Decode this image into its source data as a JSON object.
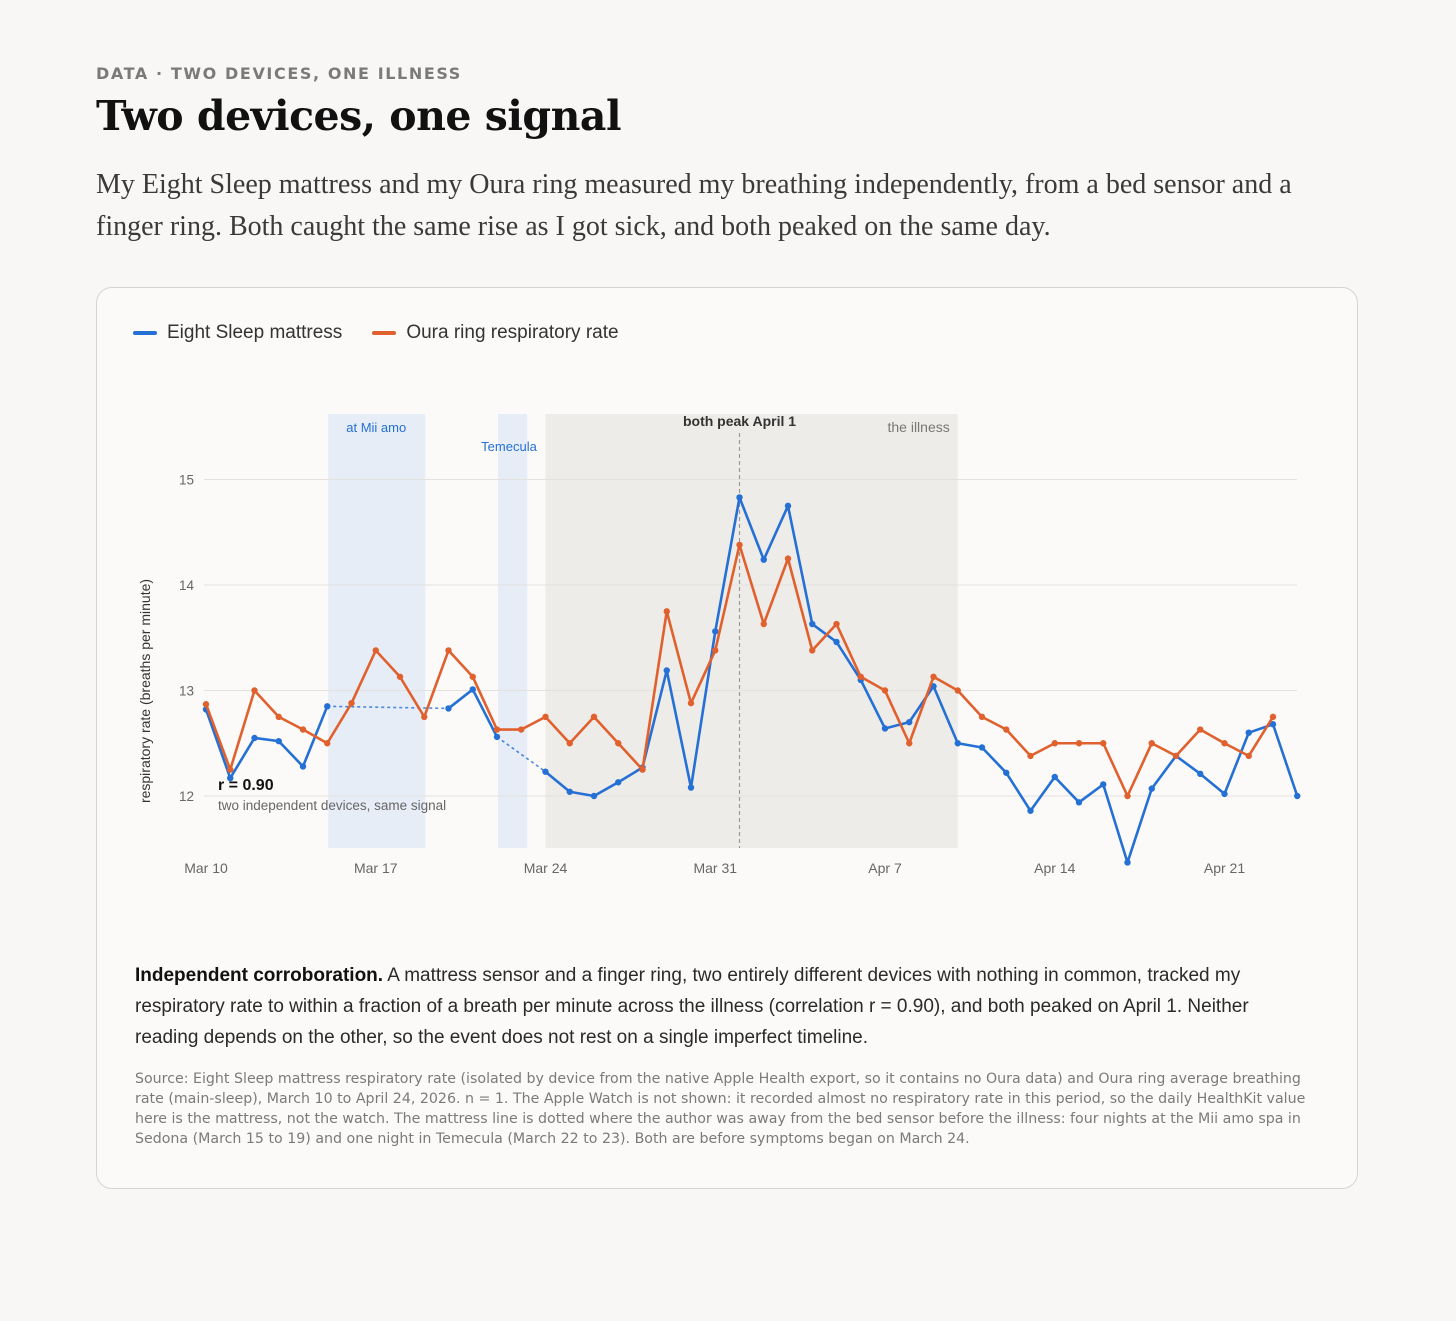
{
  "header": {
    "kicker": "DATA · TWO DEVICES, ONE ILLNESS",
    "title": "Two devices, one signal",
    "dek": "My Eight Sleep mattress and my Oura ring measured my breathing independently, from a bed sensor and a finger ring. Both caught the same rise as I got sick, and both peaked on the same day."
  },
  "colors": {
    "eight_sleep": "#2570d4",
    "oura": "#e0602e",
    "away_band": "#e6edf7",
    "illness_band": "#eeece8",
    "away_label": "#2570d4",
    "grid": "#e4e2de",
    "muted_text": "#777777"
  },
  "chart_data": {
    "type": "line",
    "x_start": "2026-03-10",
    "x": [
      "Mar 10",
      "Mar 11",
      "Mar 12",
      "Mar 13",
      "Mar 14",
      "Mar 15",
      "Mar 16",
      "Mar 17",
      "Mar 18",
      "Mar 19",
      "Mar 20",
      "Mar 21",
      "Mar 22",
      "Mar 23",
      "Mar 24",
      "Mar 25",
      "Mar 26",
      "Mar 27",
      "Mar 28",
      "Mar 29",
      "Mar 30",
      "Mar 31",
      "Apr 1",
      "Apr 2",
      "Apr 3",
      "Apr 4",
      "Apr 5",
      "Apr 6",
      "Apr 7",
      "Apr 8",
      "Apr 9",
      "Apr 10",
      "Apr 11",
      "Apr 12",
      "Apr 13",
      "Apr 14",
      "Apr 15",
      "Apr 16",
      "Apr 17",
      "Apr 18",
      "Apr 19",
      "Apr 20",
      "Apr 21",
      "Apr 22",
      "Apr 23",
      "Apr 24",
      "Apr 25"
    ],
    "series": [
      {
        "name": "Eight Sleep mattress",
        "color": "#2570d4",
        "values": [
          12.82,
          12.17,
          12.55,
          12.52,
          12.28,
          12.85,
          null,
          null,
          null,
          null,
          12.83,
          13.01,
          12.56,
          null,
          12.23,
          12.04,
          12.0,
          12.13,
          12.27,
          13.19,
          12.08,
          13.56,
          14.83,
          14.24,
          14.75,
          13.63,
          13.46,
          13.1,
          12.64,
          12.7,
          13.04,
          12.5,
          12.46,
          12.22,
          11.86,
          12.18,
          11.94,
          12.11,
          11.37,
          12.07,
          12.38,
          12.21,
          12.02,
          12.6,
          12.68,
          12.0,
          null
        ],
        "dotted_segments": [
          [
            "Mar 15",
            "Mar 20"
          ],
          [
            "Mar 22",
            "Mar 24"
          ]
        ]
      },
      {
        "name": "Oura ring respiratory rate",
        "color": "#e0602e",
        "values": [
          12.87,
          12.25,
          13.0,
          12.75,
          12.63,
          12.5,
          12.88,
          13.38,
          13.13,
          12.75,
          13.38,
          13.13,
          12.63,
          12.63,
          12.75,
          12.5,
          12.75,
          12.5,
          12.25,
          13.75,
          12.88,
          13.38,
          14.38,
          13.63,
          14.25,
          13.38,
          13.63,
          13.13,
          13.0,
          12.5,
          13.13,
          13.0,
          12.75,
          12.63,
          12.38,
          12.5,
          12.5,
          12.5,
          12.0,
          12.5,
          12.38,
          12.63,
          12.5,
          12.38,
          12.75,
          null,
          null
        ]
      }
    ],
    "ylabel": "respiratory rate (breaths per minute)",
    "ylim": [
      11.5,
      15.3
    ],
    "yticks": [
      12,
      13,
      14,
      15
    ],
    "xticks": [
      "Mar 10",
      "Mar 17",
      "Mar 24",
      "Mar 31",
      "Apr 7",
      "Apr 14",
      "Apr 21"
    ],
    "shaded_ranges": [
      {
        "label": "at Mii amo",
        "from": "Mar 15",
        "to": "Mar 19",
        "kind": "away"
      },
      {
        "label": "Temecula",
        "from": "Mar 22",
        "to": "Mar 23",
        "kind": "away"
      },
      {
        "label": "the illness",
        "from": "Mar 24",
        "to": "Apr 10",
        "kind": "illness"
      }
    ],
    "peak_marker": {
      "label": "both peak April 1",
      "at": "Apr 1"
    },
    "annotation": {
      "title": "r = 0.90",
      "subtitle": "two independent devices, same signal"
    },
    "grid": true,
    "legend_position": "top-left"
  },
  "takeaway": {
    "lead": "Independent corroboration.",
    "body": " A mattress sensor and a finger ring, two entirely different devices with nothing in common, tracked my respiratory rate to within a fraction of a breath per minute across the illness (correlation r = 0.90), and both peaked on April 1. Neither reading depends on the other, so the event does not rest on a single imperfect timeline."
  },
  "source": "Source: Eight Sleep mattress respiratory rate (isolated by device from the native Apple Health export, so it contains no Oura data) and Oura ring average breathing rate (main-sleep), March 10 to April 24, 2026. n = 1. The Apple Watch is not shown: it recorded almost no respiratory rate in this period, so the daily HealthKit value here is the mattress, not the watch. The mattress line is dotted where the author was away from the bed sensor before the illness: four nights at the Mii amo spa in Sedona (March 15 to 19) and one night in Temecula (March 22 to 23). Both are before symptoms began on March 24."
}
